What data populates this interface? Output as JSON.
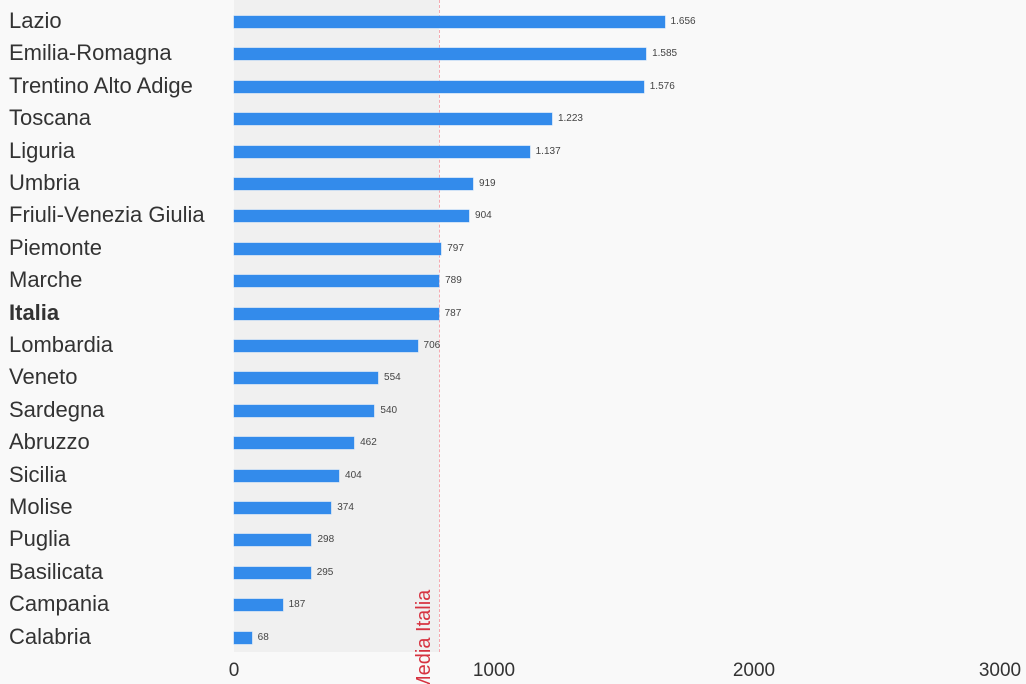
{
  "chart_data": {
    "type": "bar",
    "orientation": "horizontal",
    "categories": [
      "Lazio",
      "Emilia-Romagna",
      "Trentino Alto Adige",
      "Toscana",
      "Liguria",
      "Umbria",
      "Friuli-Venezia Giulia",
      "Piemonte",
      "Marche",
      "Italia",
      "Lombardia",
      "Veneto",
      "Sardegna",
      "Abruzzo",
      "Sicilia",
      "Molise",
      "Puglia",
      "Basilicata",
      "Campania",
      "Calabria"
    ],
    "values": [
      1656,
      1585,
      1576,
      1223,
      1137,
      919,
      904,
      797,
      789,
      787,
      706,
      554,
      540,
      462,
      404,
      374,
      298,
      295,
      187,
      68
    ],
    "value_labels": [
      "1.656",
      "1.585",
      "1.576",
      "1.223",
      "1.137",
      "919",
      "904",
      "797",
      "789",
      "787",
      "706",
      "554",
      "540",
      "462",
      "404",
      "374",
      "298",
      "295",
      "187",
      "68"
    ],
    "highlight_category": "Italia",
    "reference_line": {
      "value": 787,
      "label": "Media Italia",
      "color": "#d63340"
    },
    "xlim": [
      0,
      3000
    ],
    "xticks": [
      0,
      1000,
      2000,
      3000
    ],
    "xtick_labels": [
      "0",
      "1000",
      "2000",
      "3000"
    ],
    "title": "",
    "xlabel": "",
    "ylabel": "",
    "grid": false,
    "bar_color": "#338beb"
  }
}
